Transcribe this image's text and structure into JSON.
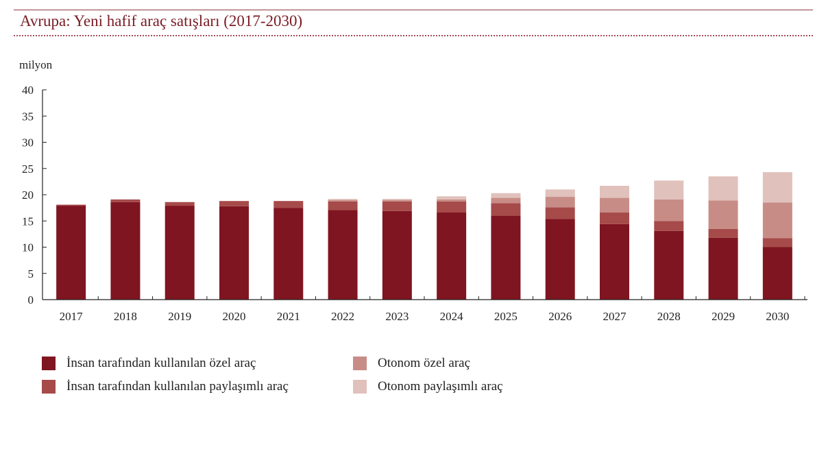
{
  "title": "Avrupa: Yeni hafif araç satışları (2017-2030)",
  "chart_data": {
    "type": "bar",
    "stacked": true,
    "ylabel": "milyon",
    "xlabel": "",
    "ylim": [
      0,
      40
    ],
    "yticks": [
      0,
      5,
      10,
      15,
      20,
      25,
      30,
      35,
      40
    ],
    "grid": false,
    "legend_position": "bottom",
    "categories": [
      "2017",
      "2018",
      "2019",
      "2020",
      "2021",
      "2022",
      "2023",
      "2024",
      "2025",
      "2026",
      "2027",
      "2028",
      "2029",
      "2030"
    ],
    "series": [
      {
        "name": "İnsan tarafından kullanılan özel araç",
        "color": "#7f1520",
        "values": [
          17.9,
          18.6,
          17.9,
          17.8,
          17.5,
          17.1,
          16.9,
          16.6,
          16.0,
          15.4,
          14.4,
          13.1,
          11.8,
          10.0
        ]
      },
      {
        "name": "İnsan tarafından kullanılan paylaşımlı araç",
        "color": "#a64a4a",
        "values": [
          0.2,
          0.5,
          0.7,
          1.0,
          1.3,
          1.6,
          1.8,
          2.1,
          2.4,
          2.2,
          2.2,
          1.9,
          1.7,
          1.7
        ]
      },
      {
        "name": "Otonom özel araç",
        "color": "#c88c86",
        "values": [
          0.0,
          0.0,
          0.0,
          0.0,
          0.0,
          0.3,
          0.3,
          0.4,
          1.0,
          2.0,
          2.8,
          4.1,
          5.4,
          6.8
        ]
      },
      {
        "name": "Otonom paylaşımlı araç",
        "color": "#e0c1bb",
        "values": [
          0.0,
          0.0,
          0.0,
          0.0,
          0.0,
          0.2,
          0.2,
          0.6,
          0.9,
          1.4,
          2.3,
          3.6,
          4.6,
          5.8
        ]
      }
    ]
  }
}
